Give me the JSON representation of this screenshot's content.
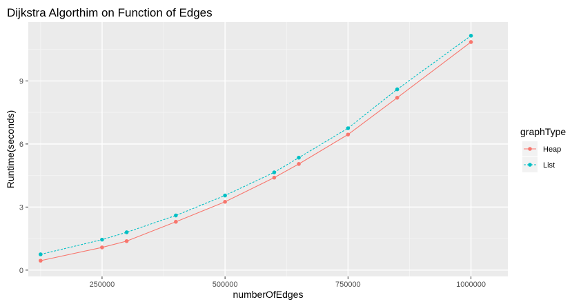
{
  "chart_data": {
    "type": "line",
    "title": "Dijkstra Algorthim on Function of Edges",
    "xlabel": "numberOfEdges",
    "ylabel": "Runtime(seconds)",
    "xlim": [
      100000,
      1075000
    ],
    "ylim": [
      -0.3,
      11.8
    ],
    "x_ticks": [
      250000,
      500000,
      750000,
      1000000
    ],
    "x_tick_labels": [
      "250000",
      "500000",
      "750000",
      "1000000"
    ],
    "y_ticks": [
      0,
      3,
      6,
      9
    ],
    "y_tick_labels": [
      "0",
      "3",
      "6",
      "9"
    ],
    "grid": true,
    "legend": {
      "title": "graphType",
      "position": "right"
    },
    "x": [
      125000,
      250000,
      300000,
      400000,
      500000,
      600000,
      650000,
      750000,
      850000,
      1000000
    ],
    "series": [
      {
        "name": "Heap",
        "color": "#F8766D",
        "dash": "solid",
        "values": [
          0.45,
          1.08,
          1.38,
          2.3,
          3.25,
          4.4,
          5.05,
          6.45,
          8.2,
          10.85
        ]
      },
      {
        "name": "List",
        "color": "#00BFC4",
        "dash": "dashed",
        "values": [
          0.75,
          1.45,
          1.8,
          2.6,
          3.55,
          4.65,
          5.35,
          6.75,
          8.6,
          11.15
        ]
      }
    ]
  }
}
